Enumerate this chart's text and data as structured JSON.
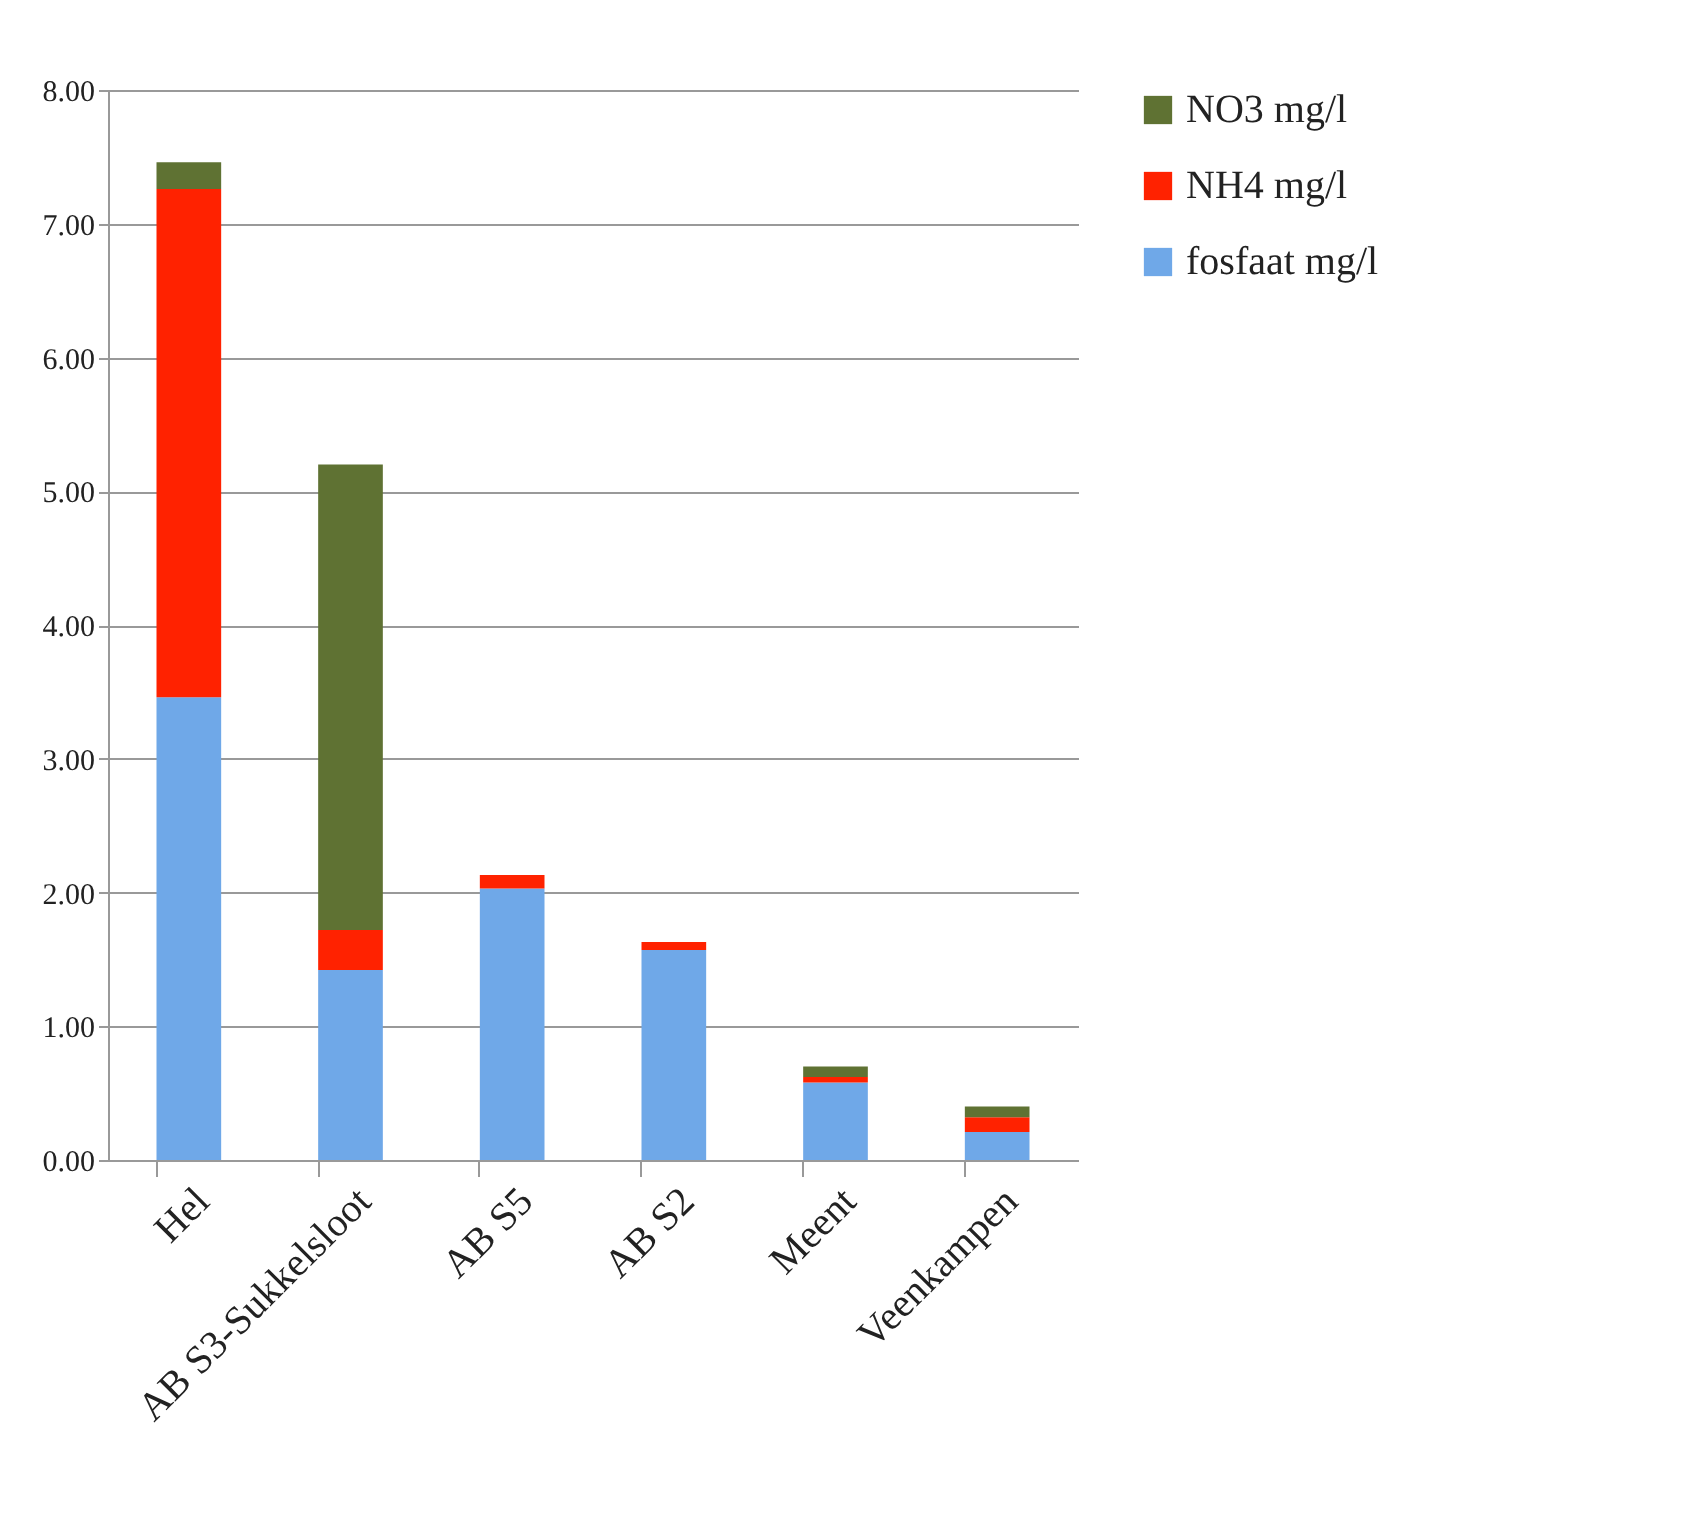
{
  "chart_data": {
    "type": "bar",
    "stacked": true,
    "categories": [
      "Hel",
      "AB S3-Sukkelsloot",
      "AB S5",
      "AB S2",
      "Meent",
      "Veenkampen"
    ],
    "series": [
      {
        "name": "fosfaat mg/l",
        "color": "#6fa8e8",
        "values": [
          3.46,
          1.42,
          2.03,
          1.57,
          0.58,
          0.21
        ]
      },
      {
        "name": "NH4 mg/l",
        "color": "#ff2200",
        "values": [
          3.8,
          0.3,
          0.1,
          0.06,
          0.04,
          0.11
        ]
      },
      {
        "name": "NO3 mg/l",
        "color": "#5f7233",
        "values": [
          0.2,
          3.48,
          0,
          0,
          0.08,
          0.08
        ]
      }
    ],
    "ylim": [
      0,
      8
    ],
    "yticks": [
      {
        "value": 0,
        "label": "0.00"
      },
      {
        "value": 1,
        "label": "1.00"
      },
      {
        "value": 2,
        "label": "2.00"
      },
      {
        "value": 3,
        "label": "3.00"
      },
      {
        "value": 4,
        "label": "4.00"
      },
      {
        "value": 5,
        "label": "5.00"
      },
      {
        "value": 6,
        "label": "6.00"
      },
      {
        "value": 7,
        "label": "7.00"
      },
      {
        "value": 8,
        "label": "8.00"
      }
    ],
    "grid": "y",
    "legend": "right"
  }
}
